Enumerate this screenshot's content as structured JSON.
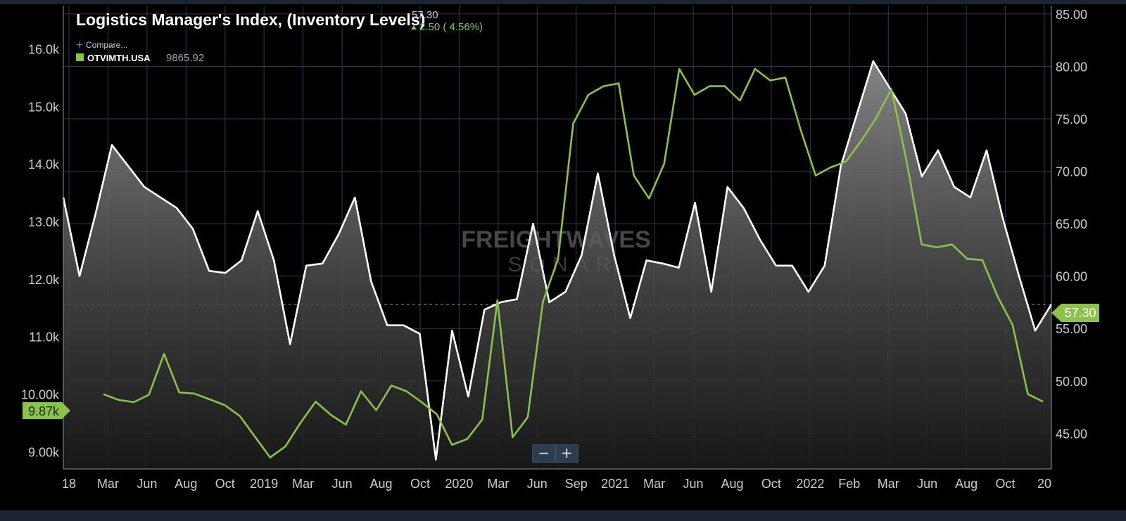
{
  "header": {
    "title": "Logistics Manager's Index, (Inventory Levels)",
    "last_value": "57.30",
    "change": "2.50 ( 4.56%)",
    "change_color": "#8bc34a",
    "compare_label": "Compare...",
    "compare_icon": "plus-icon",
    "series2_label": "OTVIMTH.USA",
    "series2_value": "9865.92"
  },
  "watermark": {
    "line1": "FREIGHTWAVES",
    "line2": "SONAR"
  },
  "badges": {
    "right": "57.30",
    "left": "9.87k"
  },
  "zoom": {
    "minus": "−",
    "plus": "+"
  },
  "chart_data": {
    "type": "line",
    "x_tick_labels": [
      "18",
      "Mar",
      "Jun",
      "Aug",
      "Oct",
      "2019",
      "Mar",
      "Jun",
      "Aug",
      "Oct",
      "2020",
      "Mar",
      "Jun",
      "Sep",
      "2021",
      "Mar",
      "Jun",
      "Aug",
      "Oct",
      "2022",
      "Feb",
      "Mar",
      "Jun",
      "Aug",
      "Oct",
      "20"
    ],
    "left_axis": {
      "ticks": [
        "9.00k",
        "10.00k",
        "11.0k",
        "12.0k",
        "13.0k",
        "14.0k",
        "15.0k",
        "16.0k"
      ],
      "range": [
        8700,
        16750
      ]
    },
    "right_axis": {
      "ticks": [
        "45.00",
        "50.00",
        "55.00",
        "60.00",
        "65.00",
        "70.00",
        "75.00",
        "80.00",
        "85.00"
      ],
      "range": [
        41.6,
        85.8
      ]
    },
    "series": [
      {
        "name": "Logistics Manager's Index, (Inventory Levels)",
        "axis": "right",
        "color": "#ffffff",
        "style": "area",
        "values": [
          67.5,
          60.0,
          66.0,
          72.5,
          70.5,
          68.5,
          67.5,
          66.5,
          64.5,
          60.5,
          60.3,
          61.5,
          66.2,
          61.5,
          53.5,
          61.0,
          61.2,
          64.0,
          67.5,
          59.5,
          55.3,
          55.3,
          54.5,
          42.5,
          54.8,
          48.5,
          56.8,
          57.5,
          57.8,
          65.0,
          57.5,
          58.5,
          62.0,
          69.8,
          62.0,
          56.0,
          61.5,
          61.2,
          60.8,
          67.0,
          58.5,
          68.5,
          66.5,
          63.5,
          61.0,
          61.0,
          58.5,
          61.0,
          70.5,
          75.5,
          80.5,
          78.0,
          75.5,
          69.5,
          72.0,
          68.5,
          67.5,
          72.0,
          65.5,
          60.0,
          54.8,
          57.3
        ]
      },
      {
        "name": "OTVIMTH.USA",
        "axis": "left",
        "color": "#8bc34a",
        "style": "line",
        "values": [
          10000,
          9900,
          9860,
          9990,
          10700,
          10030,
          10010,
          9910,
          9810,
          9620,
          9260,
          8900,
          9090,
          9500,
          9870,
          9640,
          9470,
          10050,
          9720,
          10150,
          10050,
          9860,
          9650,
          9120,
          9220,
          9560,
          11630,
          9250,
          9600,
          11600,
          12350,
          14700,
          15200,
          15350,
          15400,
          13800,
          13400,
          14000,
          15650,
          15200,
          15350,
          15350,
          15100,
          15650,
          15450,
          15500,
          14600,
          13800,
          13940,
          14040,
          14400,
          14800,
          15300,
          14050,
          12600,
          12550,
          12600,
          12350,
          12330,
          11700,
          11200,
          10000,
          9870
        ]
      }
    ]
  }
}
